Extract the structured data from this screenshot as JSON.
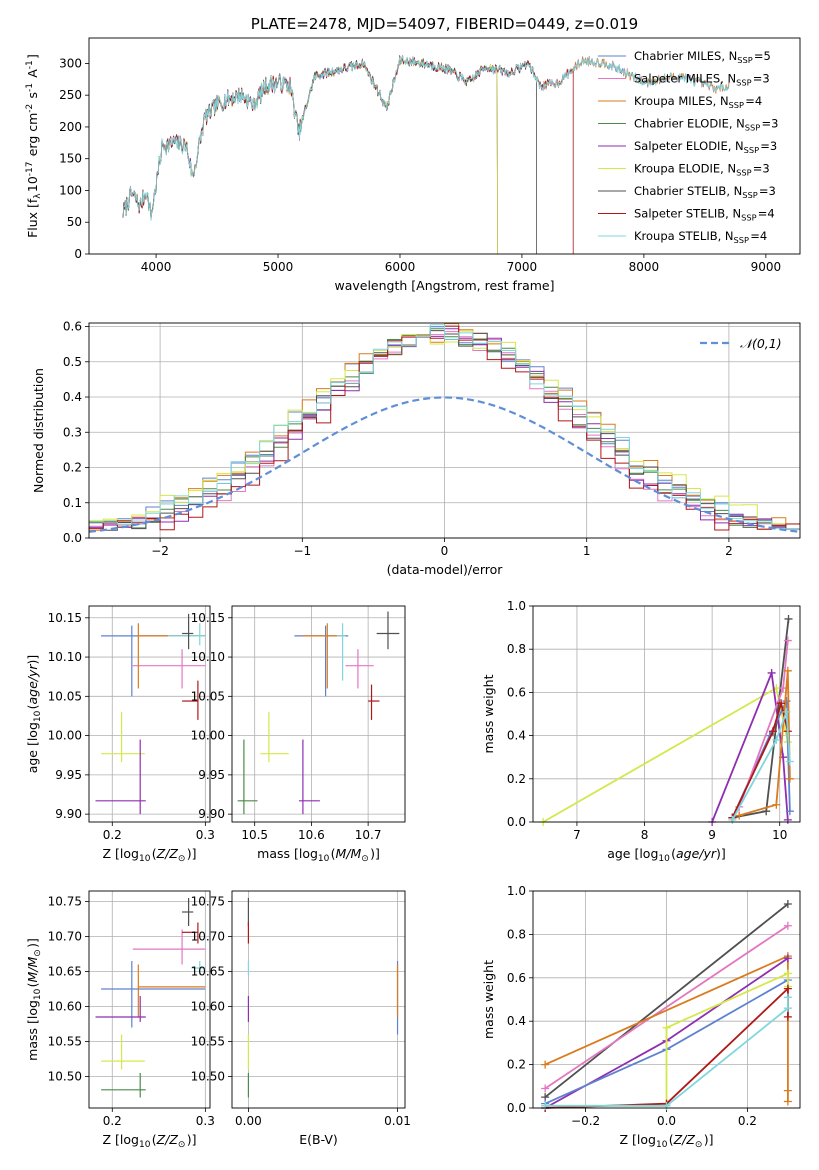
{
  "chart_data": [
    {
      "id": "spectrum",
      "type": "line",
      "title": "PLATE=2478, MJD=54097, FIBERID=0449, z=0.019",
      "xlabel": "wavelength [Angstrom, rest frame]",
      "ylabel": "Flux [f$_\\lambda$10$^{-17}$ erg cm$^{-2}$ s$^{-1}$ A$^{-1}$]",
      "xlim": [
        3450,
        9280
      ],
      "ylim": [
        0,
        340
      ],
      "xticks": [
        4000,
        5000,
        6000,
        7000,
        8000,
        9000
      ],
      "yticks": [
        0,
        50,
        100,
        150,
        200,
        250,
        300
      ],
      "grid": false,
      "legend": "top-right",
      "spectrum_anchors": {
        "x": [
          3730,
          3800,
          3870,
          3920,
          3960,
          4050,
          4150,
          4250,
          4300,
          4400,
          4500,
          4600,
          4700,
          4800,
          4900,
          5000,
          5100,
          5170,
          5300,
          5500,
          5700,
          5890,
          6000,
          6200,
          6400,
          6560,
          6700,
          6900,
          7050,
          7150,
          7300,
          7500,
          7700,
          8000,
          8300,
          8600,
          8700
        ],
        "y": [
          65,
          95,
          75,
          100,
          60,
          170,
          175,
          170,
          120,
          215,
          235,
          245,
          250,
          235,
          265,
          270,
          265,
          190,
          280,
          290,
          300,
          230,
          305,
          300,
          290,
          270,
          295,
          285,
          300,
          265,
          270,
          305,
          300,
          270,
          280,
          260,
          265
        ]
      },
      "series": [
        {
          "name": "Chabrier MILES, N$_{SSP}$=5",
          "color": "#5f82d0",
          "cut_at": null
        },
        {
          "name": "Salpeter MILES, N$_{SSP}$=3",
          "color": "#e377c2",
          "cut_at": null
        },
        {
          "name": "Kroupa MILES, N$_{SSP}$=4",
          "color": "#d97b1e",
          "cut_at": null
        },
        {
          "name": "Chabrier ELODIE, N$_{SSP}$=3",
          "color": "#4a8a4a",
          "cut_at": 6800
        },
        {
          "name": "Salpeter ELODIE, N$_{SSP}$=3",
          "color": "#8e2fb0",
          "cut_at": 6800
        },
        {
          "name": "Kroupa ELODIE, N$_{SSP}$=3",
          "color": "#d4e84a",
          "cut_at": 6800
        },
        {
          "name": "Chabrier STELIB, N$_{SSP}$=3",
          "color": "#505050",
          "cut_at": 7120
        },
        {
          "name": "Salpeter STELIB, N$_{SSP}$=4",
          "color": "#b01818",
          "cut_at": 7420
        },
        {
          "name": "Kroupa STELIB, N$_{SSP}$=4",
          "color": "#7fd6dc",
          "cut_at": null
        }
      ]
    },
    {
      "id": "residuals",
      "type": "histogram",
      "xlabel": "(data-model)/error",
      "ylabel": "Normed distribution",
      "xlim": [
        -2.5,
        2.5
      ],
      "ylim": [
        0,
        0.61
      ],
      "xticks": [
        -2,
        -1,
        0,
        1,
        2
      ],
      "yticks": [
        0.0,
        0.1,
        0.2,
        0.3,
        0.4,
        0.5,
        0.6
      ],
      "grid": true,
      "bin_width": 0.1,
      "reference_curve": {
        "name": "$\\mathcal{N}(0,1)$",
        "function": "normal_pdf",
        "mean": 0,
        "sigma": 1,
        "color": "#5f8fd8",
        "style": "dashed"
      },
      "legend": "top-right",
      "series_colors": [
        "#5f82d0",
        "#e377c2",
        "#d97b1e",
        "#4a8a4a",
        "#8e2fb0",
        "#d4e84a",
        "#505050",
        "#b01818",
        "#7fd6dc"
      ],
      "series_widths": [
        1.2,
        1.1,
        1.2,
        1.15,
        1.1,
        1.25,
        1.15,
        1.05,
        1.2
      ],
      "peak_value": 0.58
    },
    {
      "id": "age_vs_Z",
      "type": "errorbar",
      "xlabel": "Z [log$_{10}$($Z/Z_\\odot$)]",
      "ylabel": "age  [log$_{10}$($age/yr$)]",
      "xlim": [
        0.175,
        0.305
      ],
      "ylim": [
        9.89,
        10.165
      ],
      "xticks": [
        0.2,
        0.3
      ],
      "yticks": [
        9.9,
        9.95,
        10.0,
        10.05,
        10.1,
        10.15
      ],
      "grid": true,
      "points": [
        {
          "x": 0.221,
          "y": 10.127,
          "xl": 0.188,
          "xh": 0.3,
          "yl": 10.05,
          "yh": 10.14,
          "color": "#5f82d0"
        },
        {
          "x": 0.275,
          "y": 10.089,
          "xl": 0.222,
          "xh": 0.3,
          "yl": 10.06,
          "yh": 10.11,
          "color": "#e377c2"
        },
        {
          "x": 0.228,
          "y": 10.127,
          "xl": 0.228,
          "xh": 0.3,
          "yl": 10.06,
          "yh": 10.143,
          "color": "#d97b1e"
        },
        {
          "x": 0.294,
          "y": 10.127,
          "xl": 0.26,
          "xh": 0.3,
          "yl": 10.115,
          "yh": 10.143,
          "color": "#7fd6dc"
        },
        {
          "x": 0.282,
          "y": 10.13,
          "xl": 0.275,
          "xh": 0.287,
          "yl": 10.11,
          "yh": 10.155,
          "color": "#505050"
        },
        {
          "x": 0.292,
          "y": 10.044,
          "xl": 0.275,
          "xh": 0.292,
          "yl": 10.02,
          "yh": 10.07,
          "color": "#b01818"
        },
        {
          "x": 0.21,
          "y": 9.977,
          "xl": 0.188,
          "xh": 0.235,
          "yl": 9.966,
          "yh": 10.03,
          "color": "#d4e84a"
        },
        {
          "x": 0.23,
          "y": 9.917,
          "xl": 0.182,
          "xh": 0.236,
          "yl": 9.9,
          "yh": 9.995,
          "color": "#8e2fb0"
        }
      ]
    },
    {
      "id": "age_vs_mass",
      "type": "errorbar",
      "xlabel": "mass [log$_{10}$($M/M_\\odot$)]",
      "ylabel": "",
      "xlim": [
        10.46,
        10.765
      ],
      "ylim": [
        9.89,
        10.165
      ],
      "xticks": [
        10.5,
        10.6,
        10.7
      ],
      "yticks": [
        9.9,
        9.95,
        10.0,
        10.05,
        10.1,
        10.15
      ],
      "grid": true,
      "points": [
        {
          "x": 10.625,
          "y": 10.127,
          "xl": 10.57,
          "xh": 10.665,
          "yl": 10.05,
          "yh": 10.14,
          "color": "#5f82d0"
        },
        {
          "x": 10.682,
          "y": 10.089,
          "xl": 10.66,
          "xh": 10.71,
          "yl": 10.06,
          "yh": 10.11,
          "color": "#e377c2"
        },
        {
          "x": 10.628,
          "y": 10.127,
          "xl": 10.585,
          "xh": 10.66,
          "yl": 10.06,
          "yh": 10.143,
          "color": "#d97b1e"
        },
        {
          "x": 10.655,
          "y": 10.127,
          "xl": 10.645,
          "xh": 10.66,
          "yl": 10.07,
          "yh": 10.143,
          "color": "#7fd6dc"
        },
        {
          "x": 10.735,
          "y": 10.13,
          "xl": 10.715,
          "xh": 10.755,
          "yl": 10.11,
          "yh": 10.158,
          "color": "#505050"
        },
        {
          "x": 10.706,
          "y": 10.044,
          "xl": 10.7,
          "xh": 10.72,
          "yl": 10.02,
          "yh": 10.065,
          "color": "#b01818"
        },
        {
          "x": 10.525,
          "y": 9.977,
          "xl": 10.51,
          "xh": 10.56,
          "yl": 9.966,
          "yh": 10.03,
          "color": "#d4e84a"
        },
        {
          "x": 10.585,
          "y": 9.917,
          "xl": 10.578,
          "xh": 10.615,
          "yl": 9.9,
          "yh": 9.995,
          "color": "#8e2fb0"
        },
        {
          "x": 10.481,
          "y": 9.917,
          "xl": 10.47,
          "xh": 10.505,
          "yl": 9.9,
          "yh": 9.995,
          "color": "#4a8a4a"
        }
      ]
    },
    {
      "id": "mass_weight_vs_age",
      "type": "line",
      "xlabel": "age  [log$_{10}$($age/yr$)]",
      "ylabel": "mass weight",
      "xlim": [
        6.35,
        10.3
      ],
      "ylim": [
        0,
        1.0
      ],
      "xticks": [
        7,
        8,
        9,
        10
      ],
      "yticks": [
        0.0,
        0.2,
        0.4,
        0.6,
        0.8,
        1.0
      ],
      "grid": true,
      "series": [
        {
          "color": "#d4e84a",
          "x": [
            6.5,
            9.95,
            10.12
          ],
          "y": [
            0.0,
            0.62,
            0.37
          ]
        },
        {
          "color": "#8e2fb0",
          "x": [
            9.0,
            9.88,
            10.05,
            10.12
          ],
          "y": [
            0.0,
            0.69,
            0.3,
            0.01
          ]
        },
        {
          "color": "#505050",
          "x": [
            9.3,
            9.8,
            10.13
          ],
          "y": [
            0.02,
            0.05,
            0.94
          ]
        },
        {
          "color": "#5f82d0",
          "x": [
            9.3,
            9.85,
            10.1,
            10.15
          ],
          "y": [
            0.02,
            0.4,
            0.56,
            0.05
          ]
        },
        {
          "color": "#e377c2",
          "x": [
            9.4,
            10.05,
            10.12
          ],
          "y": [
            0.07,
            0.62,
            0.84
          ]
        },
        {
          "color": "#d97b1e",
          "x": [
            9.4,
            9.95,
            10.12,
            10.15
          ],
          "y": [
            0.03,
            0.08,
            0.7,
            0.2
          ]
        },
        {
          "color": "#b01818",
          "x": [
            9.3,
            9.9,
            10.02,
            10.12
          ],
          "y": [
            0.02,
            0.42,
            0.55,
            0.42
          ]
        },
        {
          "color": "#7fd6dc",
          "x": [
            9.3,
            9.95,
            10.1,
            10.15
          ],
          "y": [
            0.01,
            0.38,
            0.51,
            0.28
          ]
        }
      ]
    },
    {
      "id": "mass_vs_Z",
      "type": "errorbar",
      "xlabel": "Z [log$_{10}$($Z/Z_\\odot$)]",
      "ylabel": "mass [log$_{10}$($M/M_\\odot$)]",
      "xlim": [
        0.175,
        0.305
      ],
      "ylim": [
        10.455,
        10.765
      ],
      "xticks": [
        0.2,
        0.3
      ],
      "yticks": [
        10.5,
        10.55,
        10.6,
        10.65,
        10.7,
        10.75
      ],
      "grid": true,
      "points": [
        {
          "x": 0.221,
          "y": 10.625,
          "xl": 0.188,
          "xh": 0.3,
          "yl": 10.57,
          "yh": 10.665,
          "color": "#5f82d0"
        },
        {
          "x": 0.275,
          "y": 10.682,
          "xl": 0.222,
          "xh": 0.3,
          "yl": 10.66,
          "yh": 10.71,
          "color": "#e377c2"
        },
        {
          "x": 0.228,
          "y": 10.628,
          "xl": 0.228,
          "xh": 0.3,
          "yl": 10.585,
          "yh": 10.66,
          "color": "#d97b1e"
        },
        {
          "x": 0.294,
          "y": 10.655,
          "xl": 0.285,
          "xh": 0.3,
          "yl": 10.645,
          "yh": 10.665,
          "color": "#7fd6dc"
        },
        {
          "x": 0.282,
          "y": 10.735,
          "xl": 0.275,
          "xh": 0.287,
          "yl": 10.715,
          "yh": 10.755,
          "color": "#505050"
        },
        {
          "x": 0.292,
          "y": 10.706,
          "xl": 0.275,
          "xh": 0.292,
          "yl": 10.69,
          "yh": 10.72,
          "color": "#b01818"
        },
        {
          "x": 0.21,
          "y": 10.522,
          "xl": 0.188,
          "xh": 0.235,
          "yl": 10.51,
          "yh": 10.56,
          "color": "#d4e84a"
        },
        {
          "x": 0.23,
          "y": 10.585,
          "xl": 0.182,
          "xh": 0.236,
          "yl": 10.578,
          "yh": 10.615,
          "color": "#8e2fb0"
        },
        {
          "x": 0.23,
          "y": 10.481,
          "xl": 0.188,
          "xh": 0.236,
          "yl": 10.47,
          "yh": 10.505,
          "color": "#4a8a4a"
        }
      ]
    },
    {
      "id": "mass_vs_ebv",
      "type": "errorbar",
      "xlabel": "E(B-V)",
      "ylabel": "",
      "xlim": [
        -0.0011,
        0.0105
      ],
      "ylim": [
        10.455,
        10.765
      ],
      "xticks": [
        0.0,
        0.01
      ],
      "yticks": [
        10.5,
        10.55,
        10.6,
        10.65,
        10.7,
        10.75
      ],
      "grid": true,
      "points": [
        {
          "x": 0.0,
          "y": 10.735,
          "yl": 10.715,
          "yh": 10.755,
          "color": "#505050"
        },
        {
          "x": 0.0,
          "y": 10.706,
          "yl": 10.69,
          "yh": 10.72,
          "color": "#b01818"
        },
        {
          "x": 0.0,
          "y": 10.655,
          "yl": 10.645,
          "yh": 10.665,
          "color": "#7fd6dc"
        },
        {
          "x": 0.0,
          "y": 10.585,
          "yl": 10.578,
          "yh": 10.615,
          "color": "#8e2fb0"
        },
        {
          "x": 0.0,
          "y": 10.522,
          "yl": 10.51,
          "yh": 10.56,
          "color": "#d4e84a"
        },
        {
          "x": 0.0,
          "y": 10.481,
          "yl": 10.47,
          "yh": 10.505,
          "color": "#4a8a4a"
        },
        {
          "x": 0.01,
          "y": 10.625,
          "yl": 10.56,
          "yh": 10.665,
          "color": "#5f82d0"
        },
        {
          "x": 0.01,
          "y": 10.628,
          "yl": 10.585,
          "yh": 10.66,
          "color": "#d97b1e"
        }
      ]
    },
    {
      "id": "mass_weight_vs_Z",
      "type": "line",
      "xlabel": "Z [log$_{10}$($Z/Z_\\odot$)]",
      "ylabel": "mass weight",
      "xlim": [
        -0.33,
        0.33
      ],
      "ylim": [
        0,
        1.0
      ],
      "xticks": [
        -0.2,
        0.0,
        0.2
      ],
      "yticks": [
        0.0,
        0.2,
        0.4,
        0.6,
        0.8,
        1.0
      ],
      "grid": true,
      "series": [
        {
          "color": "#505050",
          "x": [
            -0.3,
            0.3
          ],
          "y": [
            0.05,
            0.94
          ]
        },
        {
          "color": "#e377c2",
          "x": [
            -0.3,
            0.3
          ],
          "y": [
            0.09,
            0.84
          ]
        },
        {
          "color": "#d97b1e",
          "x": [
            -0.3,
            0.3,
            0.3,
            0.3
          ],
          "y": [
            0.2,
            0.7,
            0.08,
            0.03
          ]
        },
        {
          "color": "#8e2fb0",
          "x": [
            -0.3,
            0.0,
            0.3
          ],
          "y": [
            0.0,
            0.31,
            0.69
          ]
        },
        {
          "color": "#5f82d0",
          "x": [
            -0.3,
            0.0,
            0.3
          ],
          "y": [
            0.02,
            0.27,
            0.59
          ]
        },
        {
          "color": "#d4e84a",
          "x": [
            -0.3,
            0.0,
            0.0,
            0.3,
            0.3
          ],
          "y": [
            0.01,
            0.01,
            0.37,
            0.62,
            0.56
          ]
        },
        {
          "color": "#b01818",
          "x": [
            -0.3,
            0.0,
            0.3,
            0.3
          ],
          "y": [
            0.0,
            0.02,
            0.55,
            0.42
          ]
        },
        {
          "color": "#7fd6dc",
          "x": [
            -0.3,
            0.0,
            0.3,
            0.3
          ],
          "y": [
            0.01,
            0.01,
            0.46,
            0.51
          ]
        }
      ]
    }
  ]
}
